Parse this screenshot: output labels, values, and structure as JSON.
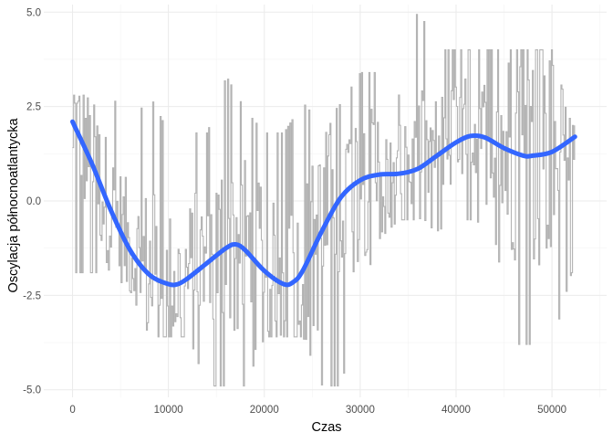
{
  "chart_data": {
    "type": "line",
    "title": "",
    "xlabel": "Czas",
    "ylabel": "Oscylacja północnoatlantycka",
    "xlim": [
      -3000,
      55700
    ],
    "ylim": [
      -5.2,
      5.2
    ],
    "xticks": [
      0,
      10000,
      20000,
      30000,
      40000,
      50000
    ],
    "xtick_labels": [
      "0",
      "10000",
      "20000",
      "30000",
      "40000",
      "50000"
    ],
    "yticks": [
      -5.0,
      -2.5,
      0.0,
      2.5,
      5.0
    ],
    "ytick_labels": [
      "-5.0",
      "-2.5",
      "0.0",
      "2.5",
      "5.0"
    ],
    "grid": true,
    "theme": "minimal",
    "colors": {
      "raw": "#b3b3b3",
      "smooth": "#3366ff"
    },
    "series": [
      {
        "kind": "raw",
        "note": "dense grey step line, approximated by its local band",
        "x": [
          0,
          2000,
          4000,
          6000,
          8000,
          10000,
          12000,
          14000,
          16000,
          18000,
          20000,
          22000,
          24000,
          26000,
          28000,
          30000,
          32000,
          34000,
          36000,
          38000,
          40000,
          42000,
          44000,
          46000,
          48000,
          50000,
          52000
        ],
        "low": [
          -1.9,
          -1.9,
          -1.9,
          -2.4,
          -3.6,
          -3.6,
          -3.6,
          -4.9,
          -4.9,
          -4.9,
          -3.6,
          -3.6,
          -3.6,
          -4.9,
          -4.9,
          -2.4,
          -1.0,
          -0.5,
          -0.5,
          -0.8,
          -0.5,
          -0.5,
          -1.0,
          -3.8,
          -3.8,
          -3.8,
          -1.9
        ],
        "high": [
          2.8,
          2.8,
          2.8,
          2.0,
          2.8,
          1.8,
          1.8,
          1.8,
          3.3,
          2.4,
          1.8,
          1.8,
          2.6,
          2.0,
          2.6,
          3.4,
          3.4,
          2.8,
          5.1,
          4.0,
          4.0,
          4.0,
          4.0,
          4.0,
          4.0,
          4.0,
          2.0
        ]
      },
      {
        "kind": "smooth",
        "x": [
          0,
          2000,
          4000,
          6000,
          8000,
          10000,
          11000,
          12000,
          14000,
          16000,
          17000,
          18000,
          20000,
          22000,
          23000,
          24000,
          26000,
          28000,
          30000,
          32000,
          34000,
          36000,
          38000,
          40000,
          41500,
          43000,
          45000,
          47000,
          48000,
          50000,
          52400
        ],
        "values": [
          2.1,
          1.0,
          -0.25,
          -1.3,
          -1.95,
          -2.2,
          -2.2,
          -2.05,
          -1.65,
          -1.25,
          -1.15,
          -1.3,
          -1.85,
          -2.2,
          -2.15,
          -1.85,
          -0.8,
          0.1,
          0.55,
          0.7,
          0.72,
          0.85,
          1.2,
          1.55,
          1.72,
          1.68,
          1.4,
          1.2,
          1.2,
          1.3,
          1.7
        ]
      }
    ]
  }
}
